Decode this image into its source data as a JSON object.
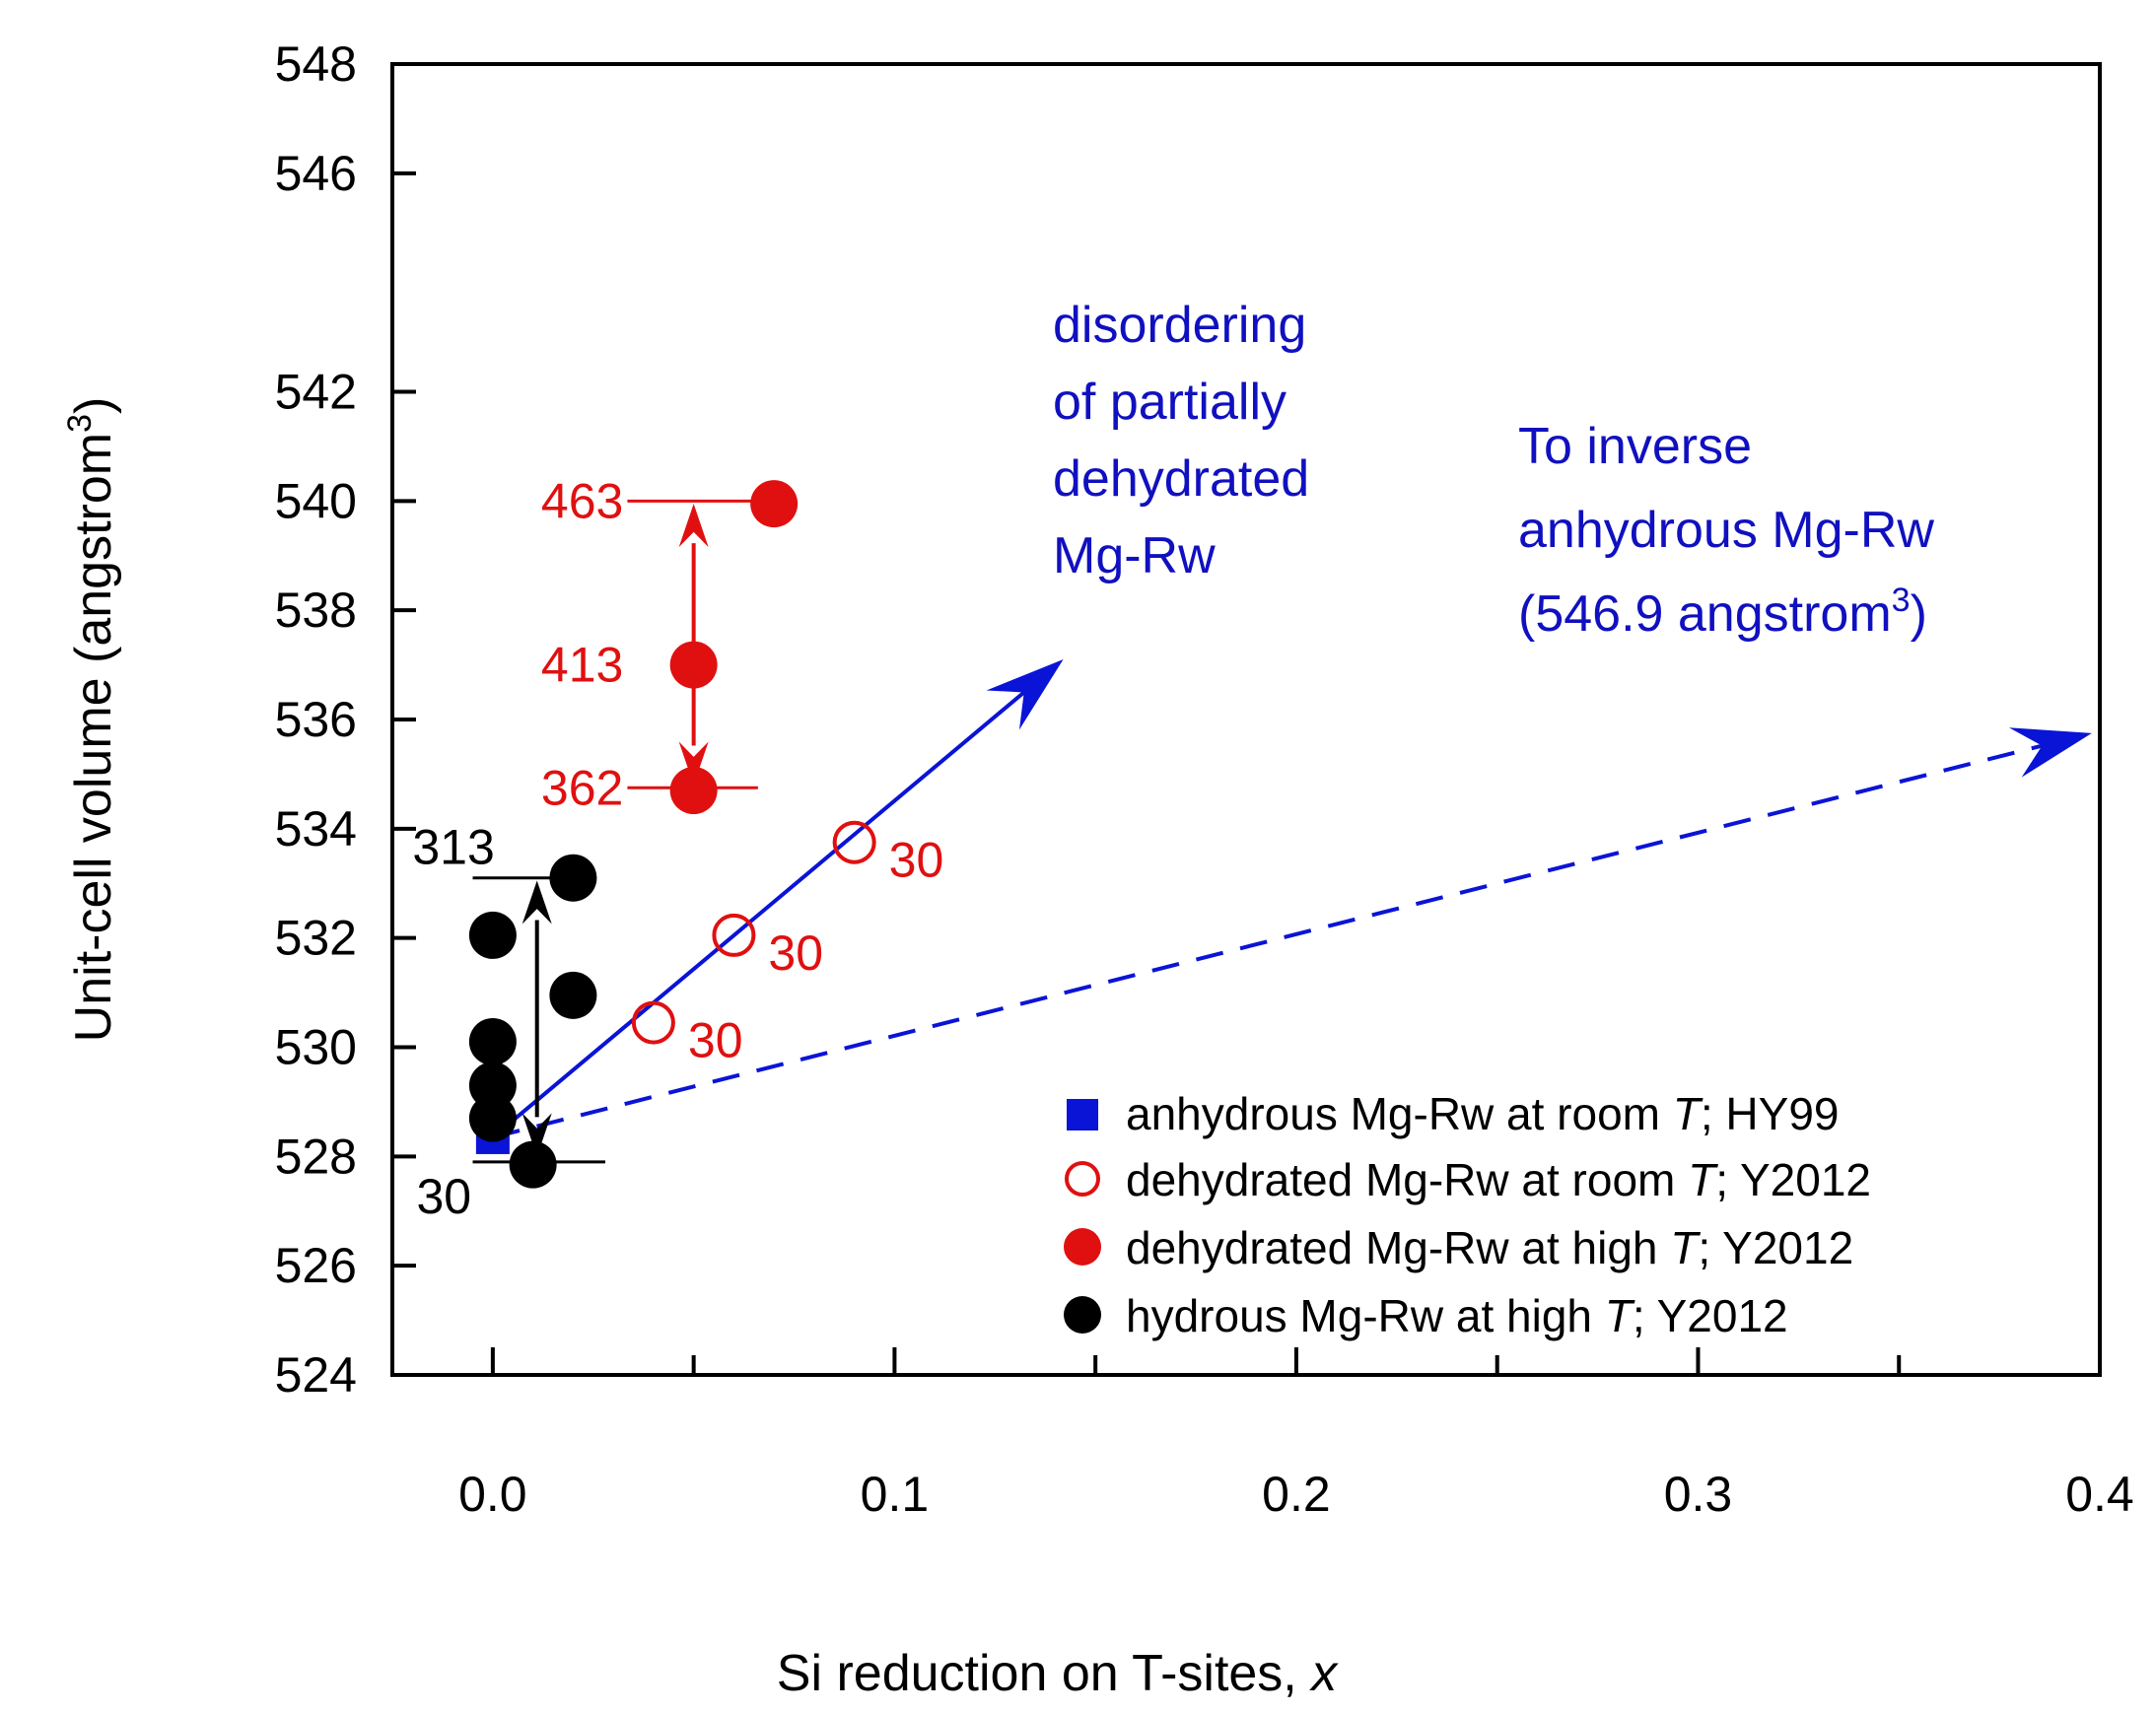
{
  "chart_data": {
    "type": "scatter",
    "xlabel_prefix": "Si reduction on T-sites, ",
    "xlabel_var": "x",
    "ylabel_prefix": "Unit-cell volume (angstrom",
    "ylabel_sup": "3",
    "ylabel_suffix": ")",
    "xlim": [
      -0.025,
      0.4
    ],
    "ylim": [
      524,
      548
    ],
    "x_ticks": [
      0.0,
      0.1,
      0.2,
      0.3,
      0.4
    ],
    "x_tick_labels": [
      "0.0",
      "0.1",
      "0.2",
      "0.3",
      "0.4"
    ],
    "x_minor_ticks": [
      0.05,
      0.15,
      0.25,
      0.35
    ],
    "y_ticks": [
      524,
      526,
      528,
      530,
      532,
      534,
      536,
      538,
      540,
      542,
      546,
      548
    ],
    "y_tick_labels": [
      "524",
      "526",
      "528",
      "530",
      "532",
      "534",
      "536",
      "538",
      "540",
      "542",
      "546",
      "548"
    ],
    "series": [
      {
        "name": "anhydrous Mg-Rw at room T; HY99",
        "legend_prefix": "anhydrous Mg-Rw at room ",
        "legend_suffix": "; HY99",
        "marker": "square",
        "color": "#0a14d6",
        "points": [
          {
            "x": 0.0,
            "y": 528.35
          }
        ]
      },
      {
        "name": "dehydrated Mg-Rw at room T; Y2012",
        "legend_prefix": "dehydrated Mg-Rw at room ",
        "legend_suffix": "; Y2012",
        "marker": "open-circle",
        "color": "#e01010",
        "points": [
          {
            "x": 0.04,
            "y": 530.45,
            "label": "30"
          },
          {
            "x": 0.06,
            "y": 532.05,
            "label": "30"
          },
          {
            "x": 0.09,
            "y": 533.75,
            "label": "30"
          }
        ]
      },
      {
        "name": "dehydrated Mg-Rw at high T; Y2012",
        "legend_prefix": "dehydrated Mg-Rw at high ",
        "legend_suffix": "; Y2012",
        "marker": "filled-circle",
        "color": "#e01010",
        "points": [
          {
            "x": 0.07,
            "y": 539.95
          },
          {
            "x": 0.05,
            "y": 537.0
          },
          {
            "x": 0.05,
            "y": 534.7
          }
        ]
      },
      {
        "name": "hydrous Mg-Rw at high T; Y2012",
        "legend_prefix": "hydrous Mg-Rw at high ",
        "legend_suffix": "; Y2012",
        "marker": "filled-circle",
        "color": "#000000",
        "points": [
          {
            "x": 0.02,
            "y": 533.1
          },
          {
            "x": 0.0,
            "y": 532.05
          },
          {
            "x": 0.02,
            "y": 530.95
          },
          {
            "x": 0.0,
            "y": 530.1
          },
          {
            "x": 0.0,
            "y": 529.3
          },
          {
            "x": 0.0,
            "y": 528.7
          },
          {
            "x": 0.01,
            "y": 527.85
          }
        ]
      }
    ],
    "temperature_labels": [
      {
        "text": "463",
        "y": 540.0,
        "color": "#e01010",
        "line_x": [
          0.0335,
          0.07
        ]
      },
      {
        "text": "413",
        "y": 537.0,
        "color": "#e01010",
        "line_x": null
      },
      {
        "text": "362",
        "y": 534.75,
        "color": "#e01010",
        "line_x": [
          0.0335,
          0.066
        ]
      },
      {
        "text": "313",
        "y": 533.1,
        "color": "#000000",
        "line_x": [
          -0.005,
          0.018
        ]
      },
      {
        "text": "30",
        "y": 527.9,
        "color": "#000000",
        "line_x": [
          -0.005,
          0.028
        ]
      }
    ],
    "red_range_arrow": {
      "x": 0.05,
      "y_from": 534.8,
      "y_to": 539.95
    },
    "black_range_arrow": {
      "x": 0.011,
      "y_from": 528.0,
      "y_to": 533.05
    },
    "solid_arrow": {
      "from": [
        0.0,
        528.35
      ],
      "to": [
        0.142,
        537.1
      ]
    },
    "dashed_arrow": {
      "from": [
        0.0,
        528.35
      ],
      "to": [
        0.398,
        535.75
      ]
    },
    "annotation_disorder": [
      "disordering",
      "of partially",
      "dehydrated",
      "Mg-Rw"
    ],
    "annotation_inverse": {
      "line1": "To inverse",
      "line2": "anhydrous Mg-Rw",
      "line3_prefix": "(546.9 angstrom",
      "line3_sup": "3",
      "line3_suffix": ")"
    },
    "legend_italic_T": "T",
    "colors": {
      "blue": "#0a14d6",
      "red": "#e01010",
      "black": "#000000",
      "annotation": "#1010c0"
    }
  }
}
